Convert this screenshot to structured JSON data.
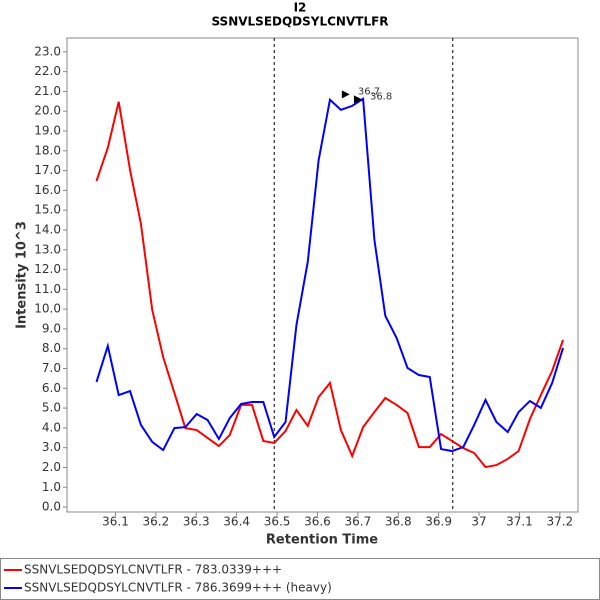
{
  "chart_data": {
    "type": "line",
    "title": "I2",
    "subtitle": "SSNVLSEDQDSYLCNVTLFR",
    "x_label": "Retention Time",
    "y_label": "Intensity 10^3",
    "xlim": [
      35.98,
      37.245
    ],
    "ylim": [
      -0.25,
      23.7
    ],
    "xticks": [
      36.1,
      36.2,
      36.3,
      36.4,
      36.5,
      36.6,
      36.7,
      36.8,
      36.9,
      37.0,
      37.1,
      37.2
    ],
    "yticks": [
      {
        "value": 0,
        "label": "0.0"
      },
      {
        "value": 1,
        "label": "1.0"
      },
      {
        "value": 2,
        "label": "2.0"
      },
      {
        "value": 3,
        "label": "3.0"
      },
      {
        "value": 4,
        "label": "4.0"
      },
      {
        "value": 5,
        "label": "5.0"
      },
      {
        "value": 6,
        "label": "6.0"
      },
      {
        "value": 7,
        "label": "7.0"
      },
      {
        "value": 8,
        "label": "8.0"
      },
      {
        "value": 9,
        "label": "9.0"
      },
      {
        "value": 10,
        "label": "10.0"
      },
      {
        "value": 11,
        "label": "11.0"
      },
      {
        "value": 12,
        "label": "12.0"
      },
      {
        "value": 13,
        "label": "13.0"
      },
      {
        "value": 14,
        "label": "14.0"
      },
      {
        "value": 15,
        "label": "15.0"
      },
      {
        "value": 16,
        "label": "16.0"
      },
      {
        "value": 17,
        "label": "17.0"
      },
      {
        "value": 18,
        "label": "18.0"
      },
      {
        "value": 19,
        "label": "19.0"
      },
      {
        "value": 20,
        "label": "20.0"
      },
      {
        "value": 21,
        "label": "21.0"
      },
      {
        "value": 22,
        "label": "22.0"
      },
      {
        "value": 23,
        "label": "23.0"
      }
    ],
    "vlines": [
      36.493,
      36.935
    ],
    "x": [
      36.053,
      36.081,
      36.108,
      36.136,
      36.163,
      36.191,
      36.218,
      36.246,
      36.273,
      36.301,
      36.328,
      36.356,
      36.383,
      36.411,
      36.438,
      36.466,
      36.493,
      36.521,
      36.548,
      36.576,
      36.603,
      36.631,
      36.658,
      36.686,
      36.713,
      36.741,
      36.768,
      36.796,
      36.823,
      36.851,
      36.878,
      36.906,
      36.933,
      36.961,
      36.988,
      37.016,
      37.043,
      37.071,
      37.098,
      37.126,
      37.153,
      37.181,
      37.208
    ],
    "series": [
      {
        "name": "SSNVLSEDQDSYLCNVTLFR - 783.0339+++",
        "color": "#ff0000",
        "values": [
          16.48,
          18.15,
          20.48,
          17.04,
          14.31,
          9.96,
          7.58,
          5.76,
          3.99,
          3.89,
          3.49,
          3.08,
          3.64,
          5.16,
          5.16,
          3.34,
          3.24,
          3.84,
          4.9,
          4.1,
          5.56,
          6.27,
          3.89,
          2.58,
          4.04,
          4.8,
          5.51,
          5.16,
          4.75,
          3.03,
          3.03,
          3.69,
          3.34,
          2.98,
          2.73,
          2.02,
          2.12,
          2.43,
          2.83,
          4.45,
          5.66,
          6.88,
          8.44
        ]
      },
      {
        "name": "SSNVLSEDQDSYLCNVTLFR - 786.3699+++ (heavy)",
        "color": "#0000ff",
        "values": [
          6.32,
          8.14,
          5.66,
          5.86,
          4.15,
          3.29,
          2.88,
          3.99,
          4.04,
          4.7,
          4.4,
          3.44,
          4.5,
          5.21,
          5.31,
          5.31,
          3.54,
          4.3,
          9.2,
          12.39,
          17.54,
          20.58,
          20.07,
          20.27,
          20.63,
          13.5,
          9.66,
          8.54,
          7.03,
          6.67,
          6.57,
          2.93,
          2.83,
          3.03,
          4.15,
          5.41,
          4.3,
          3.79,
          4.8,
          5.36,
          5.01,
          6.27,
          8.04
        ]
      }
    ],
    "annotations": [
      {
        "text": "36.7",
        "x": 36.7,
        "y": 21.0,
        "color": "#0000ff"
      },
      {
        "text": "36.8",
        "x": 36.73,
        "y": 20.75,
        "color": "#ff0000"
      }
    ]
  }
}
